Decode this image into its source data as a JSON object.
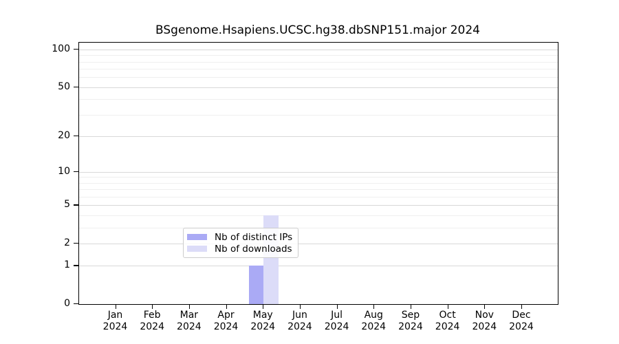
{
  "chart_data": {
    "type": "bar",
    "title": "BSgenome.Hsapiens.UCSC.hg38.dbSNP151.major 2024",
    "categories": [
      "Jan",
      "Feb",
      "Mar",
      "Apr",
      "May",
      "Jun",
      "Jul",
      "Aug",
      "Sep",
      "Oct",
      "Nov",
      "Dec"
    ],
    "category_year": "2024",
    "series": [
      {
        "name": "Nb of distinct IPs",
        "color": "#aaaaf5",
        "values": [
          0,
          0,
          0,
          0,
          1,
          0,
          0,
          0,
          0,
          0,
          0,
          0
        ]
      },
      {
        "name": "Nb of downloads",
        "color": "#dcdcf8",
        "values": [
          0,
          0,
          0,
          0,
          4,
          0,
          0,
          0,
          0,
          0,
          0,
          0
        ]
      }
    ],
    "yscale": "log1p",
    "ylim": [
      0,
      100
    ],
    "yticks": [
      0,
      1,
      2,
      5,
      10,
      20,
      50,
      100
    ],
    "minor_gridlines": [
      3,
      4,
      6,
      7,
      8,
      9,
      30,
      40,
      60,
      70,
      80,
      90
    ],
    "grid": true,
    "legend_position": "inside-bottom-center"
  },
  "colors": {
    "major_grid": "#d8d8d8",
    "minor_grid": "#efefef",
    "axis": "#000000",
    "legend_border": "#cccccc",
    "bar_distinct_ips": "#aaaaf5",
    "bar_downloads": "#dcdcf8"
  }
}
